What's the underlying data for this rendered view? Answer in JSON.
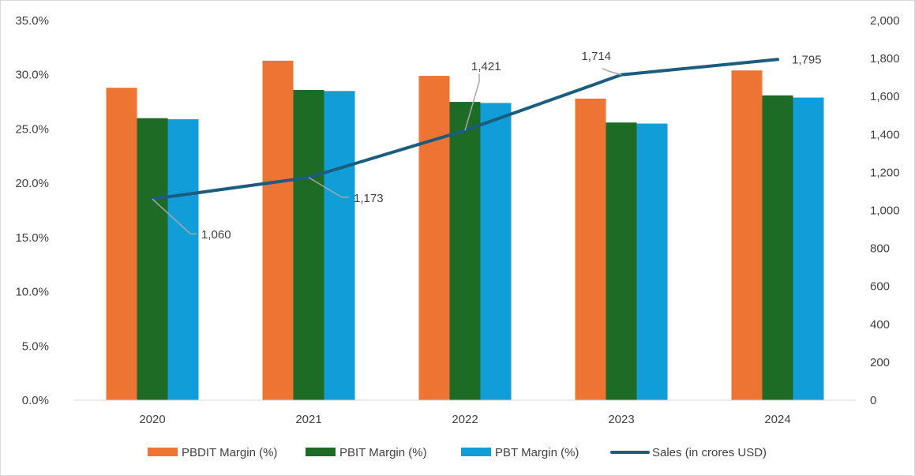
{
  "chart_data": {
    "type": "bar",
    "categories": [
      "2020",
      "2021",
      "2022",
      "2023",
      "2024"
    ],
    "series": [
      {
        "name": "PBDIT Margin (%)",
        "type": "bar",
        "axis": "left",
        "color": "#ED7433",
        "values": [
          28.8,
          31.3,
          29.9,
          27.8,
          30.4
        ]
      },
      {
        "name": "PBIT Margin (%)",
        "type": "bar",
        "axis": "left",
        "color": "#1E6B26",
        "values": [
          26.0,
          28.6,
          27.5,
          25.6,
          28.1
        ]
      },
      {
        "name": "PBT Margin (%)",
        "type": "bar",
        "axis": "left",
        "color": "#119ED8",
        "values": [
          25.9,
          28.5,
          27.4,
          25.5,
          27.9
        ]
      },
      {
        "name": "Sales (in crores USD)",
        "type": "line",
        "axis": "right",
        "color": "#1A5D7F",
        "values": [
          1060,
          1173,
          1421,
          1714,
          1795
        ],
        "data_labels": [
          "1,060",
          "1,173",
          "1,421",
          "1,714",
          "1,795"
        ]
      }
    ],
    "left_axis": {
      "min": 0,
      "max": 35,
      "step": 5,
      "format": "percent1",
      "tick_labels": [
        "0.0%",
        "5.0%",
        "10.0%",
        "15.0%",
        "20.0%",
        "25.0%",
        "30.0%",
        "35.0%"
      ]
    },
    "right_axis": {
      "min": 0,
      "max": 2000,
      "step": 200,
      "tick_labels": [
        "0",
        "200",
        "400",
        "600",
        "800",
        "1,000",
        "1,200",
        "1,400",
        "1,600",
        "1,800",
        "2,000"
      ]
    },
    "legend_position": "bottom",
    "grid": false,
    "title": ""
  }
}
